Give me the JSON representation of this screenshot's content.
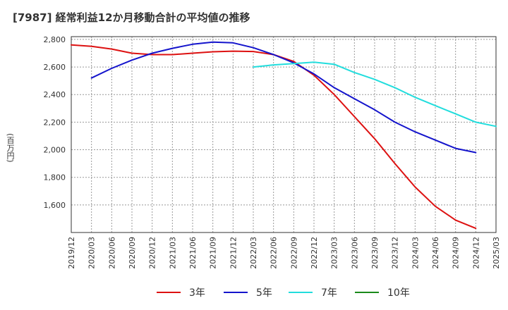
{
  "chart_data": {
    "type": "line",
    "title": "[7987]  経常利益12か月移動合計の平均値の推移",
    "ylabel": "(百万円)",
    "xlabel": "",
    "ylim": [
      1400,
      2820
    ],
    "yticks": [
      1600,
      1800,
      2000,
      2200,
      2400,
      2600,
      2800
    ],
    "ytick_labels": [
      "1,600",
      "1,800",
      "2,000",
      "2,200",
      "2,400",
      "2,600",
      "2,800"
    ],
    "xticks": [
      "2019/12",
      "2020/03",
      "2020/06",
      "2020/09",
      "2020/12",
      "2021/03",
      "2021/06",
      "2021/09",
      "2021/12",
      "2022/03",
      "2022/06",
      "2022/09",
      "2022/12",
      "2023/03",
      "2023/06",
      "2023/09",
      "2023/12",
      "2024/03",
      "2024/06",
      "2024/09",
      "2024/12",
      "2025/03"
    ],
    "grid": true,
    "legend_position": "bottom",
    "series": [
      {
        "name": "3年",
        "color": "#dd1111",
        "start_index": 0,
        "values": [
          2760,
          2750,
          2730,
          2700,
          2690,
          2690,
          2700,
          2710,
          2715,
          2712,
          2690,
          2640,
          2540,
          2400,
          2240,
          2080,
          1900,
          1730,
          1590,
          1490,
          1430
        ]
      },
      {
        "name": "5年",
        "color": "#1414cc",
        "start_index": 1,
        "values": [
          2520,
          2590,
          2650,
          2700,
          2735,
          2765,
          2780,
          2775,
          2740,
          2690,
          2630,
          2550,
          2450,
          2370,
          2290,
          2200,
          2130,
          2070,
          2010,
          1980
        ]
      },
      {
        "name": "7年",
        "color": "#22dddd",
        "start_index": 9,
        "values": [
          2600,
          2615,
          2625,
          2635,
          2620,
          2560,
          2510,
          2450,
          2380,
          2320,
          2260,
          2200,
          2170
        ]
      },
      {
        "name": "10年",
        "color": "#1a8a1a",
        "start_index": 0,
        "values": []
      }
    ]
  }
}
